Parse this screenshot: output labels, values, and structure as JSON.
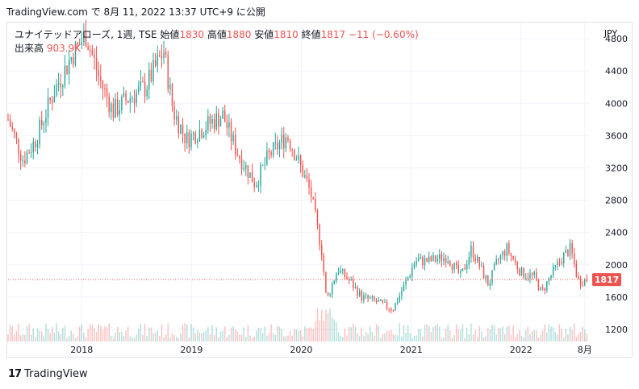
{
  "caption": "TradingView.com で 8月 11, 2022 13:37 UTC+9 に公開",
  "legend": {
    "symbol": "ユナイテッドアローズ, 1週, TSE",
    "open_label": "始値",
    "open": "1830",
    "high_label": "高値",
    "high": "1880",
    "low_label": "安値",
    "low": "1810",
    "close_label": "終値",
    "close": "1817",
    "change": "−11 (−0.60%)",
    "volume_label": "出来高",
    "volume": "903.9K"
  },
  "currency": "JPY",
  "last_price_label": "1817",
  "footer_brand": "TradingView",
  "colors": {
    "up": "#26a69a",
    "down": "#ef5350",
    "grid": "#f0f3fa",
    "axis_text": "#131722"
  },
  "chart_data": {
    "type": "candlestick",
    "title": "",
    "y_unit": "JPY",
    "ylim": [
      1050,
      5000
    ],
    "y_ticks": [
      1200,
      1600,
      2000,
      2400,
      2800,
      3200,
      3600,
      4000,
      4400,
      4800
    ],
    "x_range": [
      "2017-05-01",
      "2022-08-15"
    ],
    "x_ticks": [
      {
        "date": "2018-01-01",
        "label": "2018"
      },
      {
        "date": "2019-01-01",
        "label": "2019"
      },
      {
        "date": "2020-01-01",
        "label": "2020"
      },
      {
        "date": "2021-01-01",
        "label": "2021"
      },
      {
        "date": "2022-01-01",
        "label": "2022"
      },
      {
        "date": "2022-08-01",
        "label": "8月"
      }
    ],
    "last_close": 1817,
    "price_path": [
      [
        "2017-05-01",
        3800
      ],
      [
        "2017-06-20",
        3300
      ],
      [
        "2017-08-01",
        3550
      ],
      [
        "2017-10-01",
        4150
      ],
      [
        "2017-12-01",
        4600
      ],
      [
        "2018-01-15",
        4850
      ],
      [
        "2018-03-01",
        4300
      ],
      [
        "2018-04-15",
        3900
      ],
      [
        "2018-06-01",
        4050
      ],
      [
        "2018-08-01",
        4200
      ],
      [
        "2018-10-01",
        4650
      ],
      [
        "2018-11-01",
        3900
      ],
      [
        "2018-12-15",
        3550
      ],
      [
        "2019-03-01",
        3750
      ],
      [
        "2019-04-15",
        3850
      ],
      [
        "2019-06-01",
        3400
      ],
      [
        "2019-08-01",
        3000
      ],
      [
        "2019-09-15",
        3350
      ],
      [
        "2019-11-15",
        3600
      ],
      [
        "2019-12-15",
        3350
      ],
      [
        "2020-02-01",
        2900
      ],
      [
        "2020-03-10",
        2150
      ],
      [
        "2020-03-25",
        1550
      ],
      [
        "2020-05-01",
        1950
      ],
      [
        "2020-06-10",
        1800
      ],
      [
        "2020-07-20",
        1600
      ],
      [
        "2020-09-01",
        1550
      ],
      [
        "2020-11-01",
        1450
      ],
      [
        "2020-12-10",
        1750
      ],
      [
        "2021-01-15",
        2050
      ],
      [
        "2021-03-01",
        2050
      ],
      [
        "2021-05-01",
        2100
      ],
      [
        "2021-06-15",
        1850
      ],
      [
        "2021-07-20",
        2200
      ],
      [
        "2021-09-15",
        1750
      ],
      [
        "2021-10-15",
        2050
      ],
      [
        "2021-11-15",
        2200
      ],
      [
        "2022-01-01",
        1900
      ],
      [
        "2022-02-15",
        1850
      ],
      [
        "2022-03-10",
        1650
      ],
      [
        "2022-04-15",
        1900
      ],
      [
        "2022-05-20",
        2100
      ],
      [
        "2022-06-15",
        2200
      ],
      [
        "2022-07-10",
        1800
      ],
      [
        "2022-08-08",
        1817
      ]
    ],
    "volume_level": 0.35
  }
}
